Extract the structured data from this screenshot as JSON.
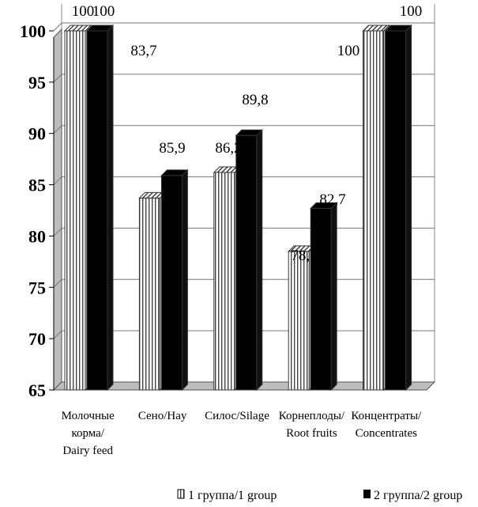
{
  "chart_data": {
    "type": "bar",
    "categories": [
      [
        "Молочные",
        "корма/",
        "Dairy feed"
      ],
      [
        "Сено/Hay"
      ],
      [
        "Силос/Silage"
      ],
      [
        "Корнеплоды/",
        "Root fruits"
      ],
      [
        "Концентраты/",
        "Concentrates"
      ]
    ],
    "series": [
      {
        "name": "1 группа/1 group",
        "values": [
          100,
          83.7,
          86.2,
          78.5,
          100
        ],
        "labels": [
          "100",
          "83,7",
          "86,2",
          "78,5",
          "100"
        ],
        "color": "#ffffff",
        "pattern": "vertical-lines"
      },
      {
        "name": "2 группа/2 group",
        "values": [
          100,
          85.9,
          89.8,
          82.7,
          100
        ],
        "labels": [
          "100",
          "85,9",
          "89,8",
          "82,7",
          "100"
        ],
        "color": "#000000"
      }
    ],
    "ylim": [
      65,
      100
    ],
    "yticks": [
      "100",
      "95",
      "90",
      "85",
      "80",
      "75",
      "70",
      "65"
    ],
    "grid": true,
    "legend_position": "bottom",
    "style": "3d-bars"
  }
}
